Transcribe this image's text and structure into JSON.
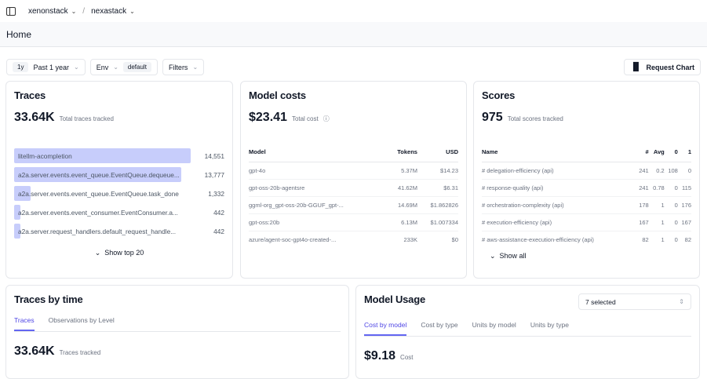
{
  "breadcrumb": {
    "org": "xenonstack",
    "project": "nexastack"
  },
  "page_title": "Home",
  "filters": {
    "range_badge": "1y",
    "range_label": "Past 1 year",
    "env_label": "Env",
    "env_value": "default",
    "filters_label": "Filters",
    "request_chart": "Request Chart"
  },
  "traces": {
    "title": "Traces",
    "total": "33.64K",
    "total_label": "Total traces tracked",
    "items": [
      {
        "name": "litellm-acompletion",
        "value": "14,551",
        "count": 14551
      },
      {
        "name": "a2a.server.events.event_queue.EventQueue.dequeue...",
        "value": "13,777",
        "count": 13777
      },
      {
        "name": "a2a.server.events.event_queue.EventQueue.task_done",
        "value": "1,332",
        "count": 1332
      },
      {
        "name": "a2a.server.events.event_consumer.EventConsumer.a...",
        "value": "442",
        "count": 442
      },
      {
        "name": "a2a.server.request_handlers.default_request_handle...",
        "value": "442",
        "count": 442
      }
    ],
    "show_more": "Show top 20",
    "bar_color": "#c7cdfb"
  },
  "model_costs": {
    "title": "Model costs",
    "total": "$23.41",
    "total_label": "Total cost",
    "headers": [
      "Model",
      "Tokens",
      "USD"
    ],
    "rows": [
      [
        "gpt-4o",
        "5.37M",
        "$14.23"
      ],
      [
        "gpt-oss-20b-agentsre",
        "41.62M",
        "$6.31"
      ],
      [
        "ggml-org_gpt-oss-20b-GGUF_gpt-...",
        "14.69M",
        "$1.862826"
      ],
      [
        "gpt-oss:20b",
        "6.13M",
        "$1.007334"
      ],
      [
        "azure/agent-soc-gpt4o-created-...",
        "233K",
        "$0"
      ]
    ]
  },
  "scores": {
    "title": "Scores",
    "total": "975",
    "total_label": "Total scores tracked",
    "headers": [
      "Name",
      "#",
      "Avg",
      "0",
      "1"
    ],
    "rows": [
      [
        "# delegation-efficiency (api)",
        "241",
        "0.2",
        "108",
        "0"
      ],
      [
        "# response-quality (api)",
        "241",
        "0.78",
        "0",
        "115"
      ],
      [
        "# orchestration-complexity (api)",
        "178",
        "1",
        "0",
        "176"
      ],
      [
        "# execution-efficiency (api)",
        "167",
        "1",
        "0",
        "167"
      ],
      [
        "# aws-assistance-execution-efficiency (api)",
        "82",
        "1",
        "0",
        "82"
      ]
    ],
    "show_more": "Show all"
  },
  "traces_by_time": {
    "title": "Traces by time",
    "tabs": [
      "Traces",
      "Observations by Level"
    ],
    "total": "33.64K",
    "total_label": "Traces tracked"
  },
  "model_usage": {
    "title": "Model Usage",
    "select": "7 selected",
    "tabs": [
      "Cost by model",
      "Cost by type",
      "Units by model",
      "Units by type"
    ],
    "total": "$9.18",
    "total_label": "Cost"
  },
  "accent": "#6366f1"
}
